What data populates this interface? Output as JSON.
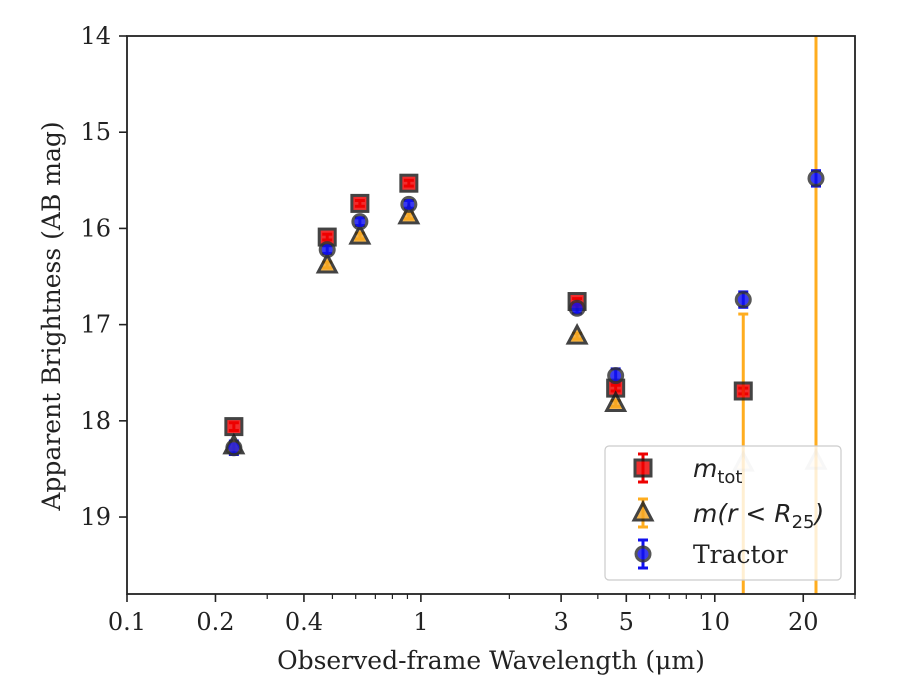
{
  "chart_data": {
    "type": "scatter",
    "xlabel": "Observed-frame Wavelength (μm)",
    "ylabel": "Apparent Brightness (AB mag)",
    "xscale": "log",
    "xlim": [
      0.1,
      30
    ],
    "ylim": [
      19.8,
      14
    ],
    "y_inverted": true,
    "grid": false,
    "legend_position": "lower-right",
    "x_ticks": [
      {
        "value": 0.1,
        "label": "0.1"
      },
      {
        "value": 0.2,
        "label": "0.2"
      },
      {
        "value": 0.4,
        "label": "0.4"
      },
      {
        "value": 1,
        "label": "1"
      },
      {
        "value": 3,
        "label": "3"
      },
      {
        "value": 5,
        "label": "5"
      },
      {
        "value": 10,
        "label": "10"
      },
      {
        "value": 20,
        "label": "20"
      }
    ],
    "y_ticks": [
      {
        "value": 14,
        "label": "14"
      },
      {
        "value": 15,
        "label": "15"
      },
      {
        "value": 16,
        "label": "16"
      },
      {
        "value": 17,
        "label": "17"
      },
      {
        "value": 18,
        "label": "18"
      },
      {
        "value": 19,
        "label": "19"
      }
    ],
    "series": [
      {
        "name": "m_tot",
        "label_base": "m",
        "label_sub": "tot",
        "marker": "square",
        "color": "#ee0000",
        "edge_color": "#1a1a1a",
        "errbar_color": "#ee0000",
        "points": [
          {
            "x": 0.231,
            "y": 18.06,
            "err": 0.04
          },
          {
            "x": 0.48,
            "y": 16.09,
            "err": 0.03
          },
          {
            "x": 0.62,
            "y": 15.74,
            "err": 0.03
          },
          {
            "x": 0.91,
            "y": 15.53,
            "err": 0.03
          },
          {
            "x": 3.4,
            "y": 16.76,
            "err": 0.03
          },
          {
            "x": 4.6,
            "y": 17.66,
            "err": 0.03
          },
          {
            "x": 12.5,
            "y": 17.69,
            "err": 0.03
          }
        ]
      },
      {
        "name": "m(r < R25)",
        "label_base": "m(r < R",
        "label_sub": "25",
        "label_tail": ")",
        "marker": "triangle",
        "color": "#f5a623",
        "edge_color": "#1a1a1a",
        "errbar_color": "#ffad1f",
        "points": [
          {
            "x": 0.231,
            "y": 18.26,
            "err": 0.03
          },
          {
            "x": 0.48,
            "y": 16.38,
            "err": 0.03
          },
          {
            "x": 0.62,
            "y": 16.08,
            "err": 0.03
          },
          {
            "x": 0.91,
            "y": 15.87,
            "err": 0.03
          },
          {
            "x": 3.4,
            "y": 17.12,
            "err": 0.03
          },
          {
            "x": 4.6,
            "y": 17.82,
            "err": 0.03
          },
          {
            "x": 12.5,
            "y": 18.44,
            "err": 1.55,
            "faded": true
          },
          {
            "x": 22.1,
            "y": 18.42,
            "err": 5.0,
            "faded": true
          }
        ]
      },
      {
        "name": "Tractor",
        "marker": "circle",
        "color": "#1010ee",
        "edge_color": "#333333",
        "errbar_color": "#1010ee",
        "points": [
          {
            "x": 0.231,
            "y": 18.28,
            "err": 0.07
          },
          {
            "x": 0.48,
            "y": 16.22,
            "err": 0.04
          },
          {
            "x": 0.62,
            "y": 15.93,
            "err": 0.04
          },
          {
            "x": 0.91,
            "y": 15.75,
            "err": 0.04
          },
          {
            "x": 3.4,
            "y": 16.83,
            "err": 0.05
          },
          {
            "x": 4.6,
            "y": 17.53,
            "err": 0.07
          },
          {
            "x": 12.5,
            "y": 16.74,
            "err": 0.08
          },
          {
            "x": 22.1,
            "y": 15.48,
            "err": 0.08
          }
        ]
      }
    ]
  }
}
